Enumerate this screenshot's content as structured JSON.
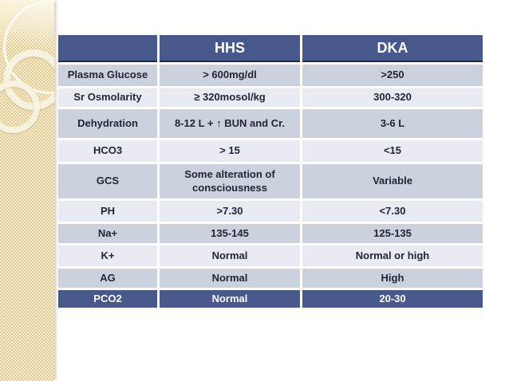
{
  "theme": {
    "accent_blue": "#47598c",
    "row_dark": "#ccd1de",
    "row_light": "#e9ebf2",
    "text_color": "#212636",
    "strip_beige": "#ebdbaa"
  },
  "table": {
    "columns": [
      "",
      "HHS",
      "DKA"
    ],
    "rows": [
      {
        "label": "Plasma Glucose",
        "hhs": "> 600mg/dl",
        "dka": ">250"
      },
      {
        "label": "Sr Osmolarity",
        "hhs": "≥ 320mosol/kg",
        "dka": "300-320"
      },
      {
        "label": "Dehydration",
        "hhs": "8-12 L + ↑ BUN and Cr.",
        "dka": "3-6 L"
      },
      {
        "label": "HCO3",
        "hhs": "> 15",
        "dka": "<15"
      },
      {
        "label": "GCS",
        "hhs": "Some alteration of consciousness",
        "dka": "Variable"
      },
      {
        "label": "PH",
        "hhs": ">7.30",
        "dka": "<7.30"
      },
      {
        "label": "Na+",
        "hhs": "135-145",
        "dka": "125-135"
      },
      {
        "label": "K+",
        "hhs": "Normal",
        "dka": "Normal or high"
      },
      {
        "label": "AG",
        "hhs": "Normal",
        "dka": "High"
      },
      {
        "label": "PCO2",
        "hhs": "Normal",
        "dka": "20-30"
      }
    ]
  }
}
